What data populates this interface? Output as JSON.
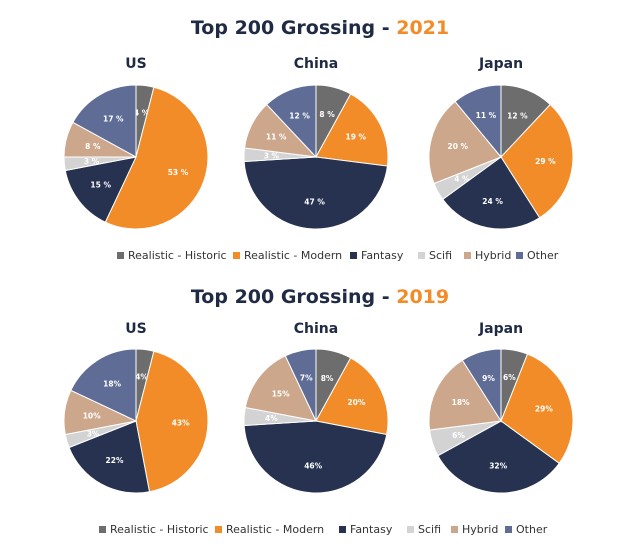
{
  "legend": [
    {
      "key": "realistic_historic",
      "label": "Realistic - Historic",
      "color": "#6d6d6d"
    },
    {
      "key": "realistic_modern",
      "label": "Realistic - Modern",
      "color": "#f28c28"
    },
    {
      "key": "fantasy",
      "label": "Fantasy",
      "color": "#263250"
    },
    {
      "key": "scifi",
      "label": "Scifi",
      "color": "#d3d3d3"
    },
    {
      "key": "hybrid",
      "label": "Hybrid",
      "color": "#cda78c"
    },
    {
      "key": "other",
      "label": "Other",
      "color": "#5e6c96"
    }
  ],
  "chart_data": [
    {
      "type": "pie",
      "title_prefix": "Top 200 Grossing - ",
      "title_year": "2021",
      "charts": [
        {
          "region": "US",
          "slices": [
            {
              "key": "realistic_historic",
              "value": 4,
              "label": "4 %"
            },
            {
              "key": "realistic_modern",
              "value": 53,
              "label": "53 %"
            },
            {
              "key": "fantasy",
              "value": 15,
              "label": "15 %"
            },
            {
              "key": "scifi",
              "value": 3,
              "label": "3 %"
            },
            {
              "key": "hybrid",
              "value": 8,
              "label": "8 %"
            },
            {
              "key": "other",
              "value": 17,
              "label": "17 %"
            }
          ]
        },
        {
          "region": "China",
          "slices": [
            {
              "key": "realistic_historic",
              "value": 8,
              "label": "8 %"
            },
            {
              "key": "realistic_modern",
              "value": 19,
              "label": "19 %"
            },
            {
              "key": "fantasy",
              "value": 47,
              "label": "47 %"
            },
            {
              "key": "scifi",
              "value": 3,
              "label": "3 %"
            },
            {
              "key": "hybrid",
              "value": 11,
              "label": "11 %"
            },
            {
              "key": "other",
              "value": 12,
              "label": "12 %"
            }
          ]
        },
        {
          "region": "Japan",
          "slices": [
            {
              "key": "realistic_historic",
              "value": 12,
              "label": "12 %"
            },
            {
              "key": "realistic_modern",
              "value": 29,
              "label": "29 %"
            },
            {
              "key": "fantasy",
              "value": 24,
              "label": "24 %"
            },
            {
              "key": "scifi",
              "value": 4,
              "label": "4 %"
            },
            {
              "key": "hybrid",
              "value": 20,
              "label": "20 %"
            },
            {
              "key": "other",
              "value": 11,
              "label": "11 %"
            }
          ]
        }
      ]
    },
    {
      "type": "pie",
      "title_prefix": "Top 200 Grossing - ",
      "title_year": "2019",
      "charts": [
        {
          "region": "US",
          "slices": [
            {
              "key": "realistic_historic",
              "value": 4,
              "label": "4%"
            },
            {
              "key": "realistic_modern",
              "value": 43,
              "label": "43%"
            },
            {
              "key": "fantasy",
              "value": 22,
              "label": "22%"
            },
            {
              "key": "scifi",
              "value": 3,
              "label": "3%"
            },
            {
              "key": "hybrid",
              "value": 10,
              "label": "10%"
            },
            {
              "key": "other",
              "value": 18,
              "label": "18%"
            }
          ]
        },
        {
          "region": "China",
          "slices": [
            {
              "key": "realistic_historic",
              "value": 8,
              "label": "8%"
            },
            {
              "key": "realistic_modern",
              "value": 20,
              "label": "20%"
            },
            {
              "key": "fantasy",
              "value": 46,
              "label": "46%"
            },
            {
              "key": "scifi",
              "value": 4,
              "label": "4%"
            },
            {
              "key": "hybrid",
              "value": 15,
              "label": "15%"
            },
            {
              "key": "other",
              "value": 7,
              "label": "7%"
            }
          ]
        },
        {
          "region": "Japan",
          "slices": [
            {
              "key": "realistic_historic",
              "value": 6,
              "label": "6%"
            },
            {
              "key": "realistic_modern",
              "value": 29,
              "label": "29%"
            },
            {
              "key": "fantasy",
              "value": 32,
              "label": "32%"
            },
            {
              "key": "scifi",
              "value": 6,
              "label": "6%"
            },
            {
              "key": "hybrid",
              "value": 18,
              "label": "18%"
            },
            {
              "key": "other",
              "value": 9,
              "label": "9%"
            }
          ]
        }
      ]
    }
  ]
}
